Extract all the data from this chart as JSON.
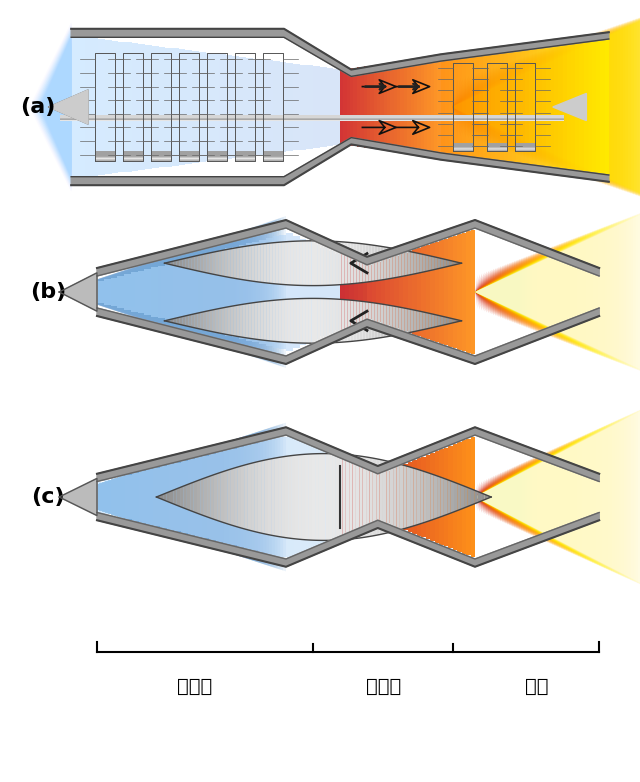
{
  "title": "",
  "labels": {
    "a": "(a)",
    "b": "(b)",
    "c": "(c)"
  },
  "bottom_labels": [
    "进气道",
    "燃烧室",
    "喷口"
  ],
  "background": "#ffffff",
  "figure_size": [
    6.4,
    7.82
  ],
  "dpi": 100
}
